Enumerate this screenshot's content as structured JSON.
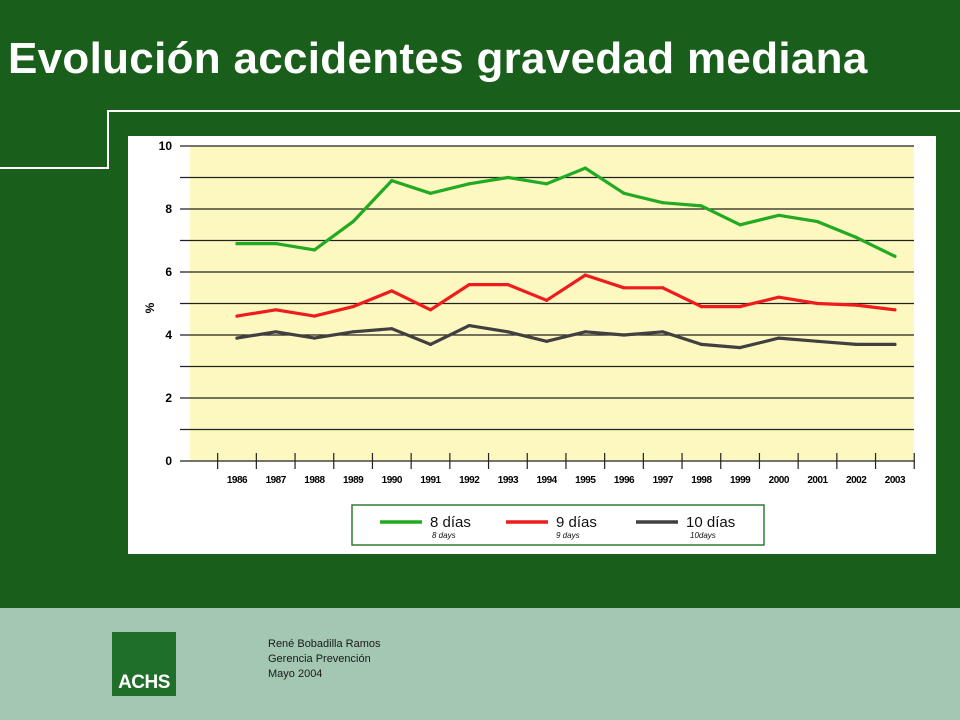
{
  "slide": {
    "title": "Evolución accidentes gravedad mediana",
    "footer": {
      "author": "René Bobadilla Ramos",
      "department": "Gerencia Prevención",
      "date": "Mayo 2004"
    },
    "logo_text": "ACHS",
    "colors": {
      "background": "#1a5e1c",
      "footer_band": "#a3c7b1",
      "plot_area": "#fdf8c0"
    }
  },
  "chart_data": {
    "type": "line",
    "title": "",
    "xlabel": "",
    "ylabel": "%",
    "ylim": [
      0,
      10
    ],
    "y_ticks": [
      "0",
      "2",
      "4",
      "6",
      "8",
      "10"
    ],
    "categories": [
      "1986",
      "1987",
      "1988",
      "1989",
      "1990",
      "1991",
      "1992",
      "1993",
      "1994",
      "1995",
      "1996",
      "1997",
      "1998",
      "1999",
      "2000",
      "2001",
      "2002",
      "2003"
    ],
    "series": [
      {
        "name": "8 días",
        "subname": "8 days",
        "color": "#22aa22",
        "values": [
          6.9,
          6.9,
          6.7,
          7.6,
          8.9,
          8.5,
          8.8,
          9.0,
          8.8,
          9.3,
          8.5,
          8.2,
          8.1,
          7.5,
          7.8,
          7.6,
          7.1,
          6.5
        ]
      },
      {
        "name": "9 días",
        "subname": "9 days",
        "color": "#ee1c1c",
        "values": [
          4.6,
          4.8,
          4.6,
          4.9,
          5.4,
          4.8,
          5.6,
          5.6,
          5.1,
          5.9,
          5.5,
          5.5,
          4.9,
          4.9,
          5.2,
          5.0,
          4.95,
          4.8
        ]
      },
      {
        "name": "10 días",
        "subname": "10days",
        "color": "#404040",
        "values": [
          3.9,
          4.1,
          3.9,
          4.1,
          4.2,
          3.7,
          4.3,
          4.1,
          3.8,
          4.1,
          4.0,
          4.1,
          3.7,
          3.6,
          3.9,
          3.8,
          3.7,
          3.7
        ]
      }
    ],
    "grid": true,
    "legend_position": "bottom"
  }
}
